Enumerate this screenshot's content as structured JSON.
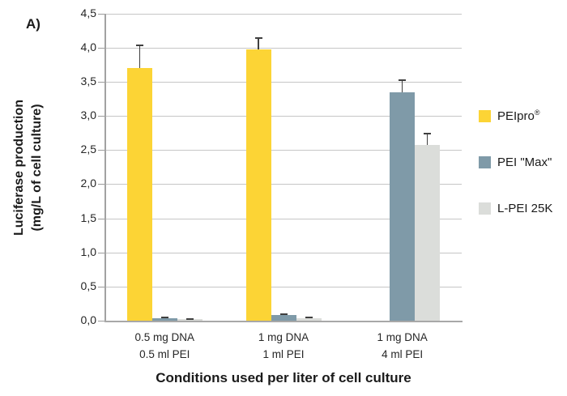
{
  "panel_label": "A)",
  "y_axis_title": {
    "line1": "Luciferase production",
    "line2": "(mg/L of cell culture)"
  },
  "x_axis_title": "Conditions used per liter of cell culture",
  "legend": {
    "position": "right",
    "items": [
      {
        "label": "PEIpro",
        "suffix": "®",
        "color": "#FCD435"
      },
      {
        "label": "PEI \"Max\"",
        "suffix": "",
        "color": "#7F9AA8"
      },
      {
        "label": "L-PEI 25K",
        "suffix": "",
        "color": "#DBDDDA"
      }
    ]
  },
  "chart_data": {
    "type": "bar",
    "title": "",
    "xlabel": "Conditions used per liter of cell culture",
    "ylabel": "Luciferase production (mg/L of cell culture)",
    "categories": [
      [
        "0.5 mg DNA",
        "0.5 ml PEI"
      ],
      [
        "1 mg DNA",
        "1 ml PEI"
      ],
      [
        "1 mg DNA",
        "4 ml PEI"
      ]
    ],
    "series": [
      {
        "name": "PEIpro®",
        "color": "#FCD435",
        "values": [
          3.7,
          3.97,
          0
        ],
        "errors": [
          0.35,
          0.18,
          0
        ]
      },
      {
        "name": "PEI \"Max\"",
        "color": "#7F9AA8",
        "values": [
          0.035,
          0.08,
          3.35
        ],
        "errors": [
          0.02,
          0.03,
          0.19
        ]
      },
      {
        "name": "L-PEI 25K",
        "color": "#DBDDDA",
        "values": [
          0.02,
          0.04,
          2.57
        ],
        "errors": [
          0.012,
          0.02,
          0.18
        ]
      }
    ],
    "ylim": [
      0,
      4.5
    ],
    "ytick_step": 0.5,
    "decimal_separator": ",",
    "grid": true,
    "error_bars": "plus",
    "legend_position": "right"
  }
}
